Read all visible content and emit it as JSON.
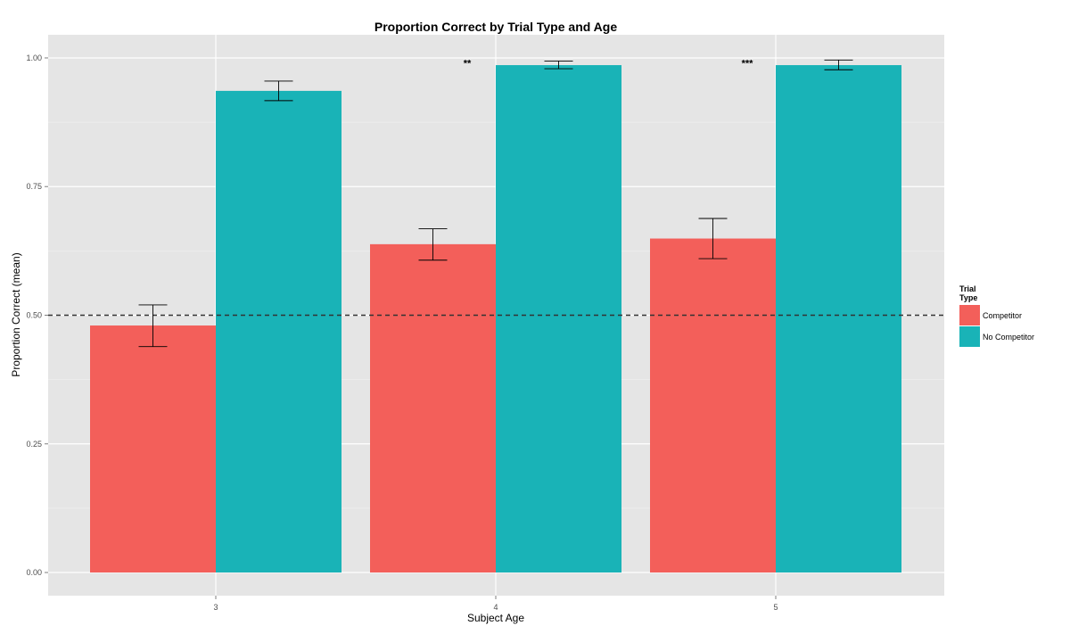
{
  "chart_data": {
    "type": "bar",
    "title": "Proportion Correct by Trial Type and Age",
    "xlabel": "Subject Age",
    "ylabel": "Proportion Correct (mean)",
    "categories": [
      "3",
      "4",
      "5"
    ],
    "ylim": [
      -0.045,
      1.045
    ],
    "yticks": [
      0,
      0.25,
      0.5,
      0.75,
      1
    ],
    "ytick_labels": [
      "0.00",
      "0.25",
      "0.50",
      "0.75",
      "1.00"
    ],
    "reference_line": {
      "y": 0.5,
      "style": "dashed"
    },
    "grid": true,
    "legend": {
      "title_lines": [
        "Trial",
        "Type"
      ],
      "placement": "right"
    },
    "series": [
      {
        "name": "Competitor",
        "color": "#F35F5A",
        "values": [
          0.48,
          0.638,
          0.649
        ],
        "error_low": [
          0.439,
          0.607,
          0.61
        ],
        "error_high": [
          0.52,
          0.668,
          0.688
        ]
      },
      {
        "name": "No Competitor",
        "color": "#19B3B7",
        "values": [
          0.936,
          0.986,
          0.986
        ],
        "error_low": [
          0.917,
          0.979,
          0.977
        ],
        "error_high": [
          0.955,
          0.994,
          0.996
        ]
      }
    ],
    "annotations": [
      {
        "text": "**",
        "category": "4",
        "y": 0.99
      },
      {
        "text": "***",
        "category": "5",
        "y": 0.99
      }
    ]
  }
}
